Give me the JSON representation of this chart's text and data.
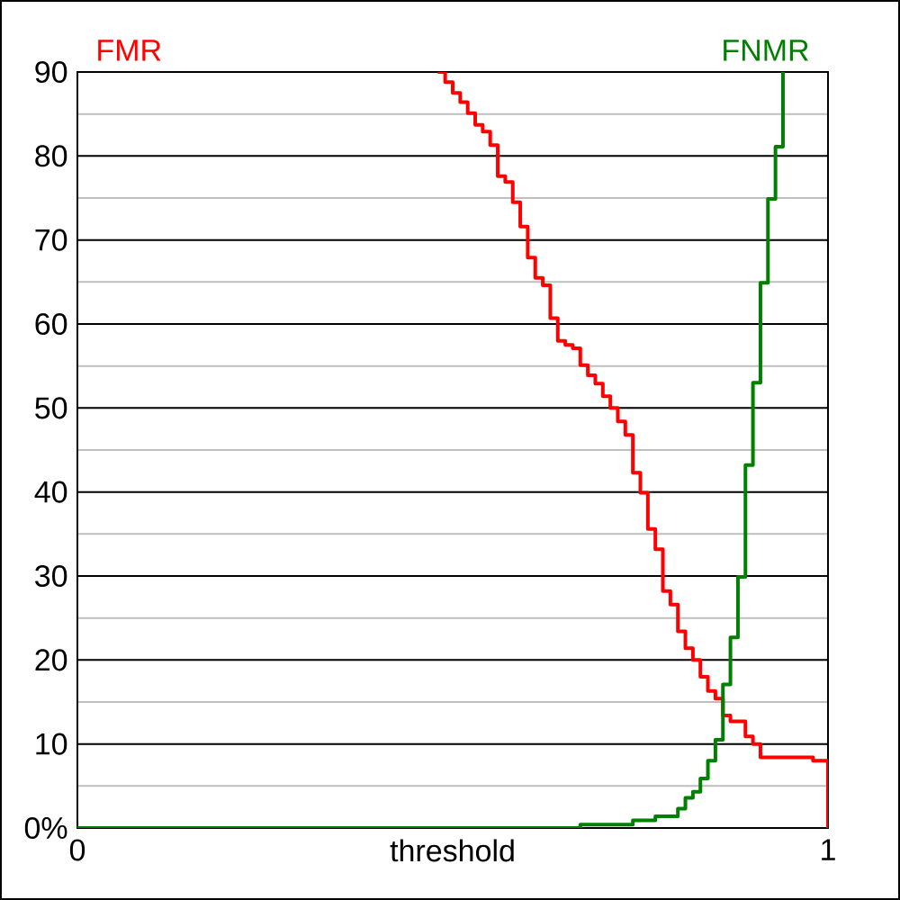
{
  "chart_data": {
    "type": "step",
    "xlabel": "threshold",
    "xlim": [
      0,
      1
    ],
    "xticks": [
      0,
      1
    ],
    "ylim": [
      0,
      90
    ],
    "yticks": [
      {
        "value": 0,
        "label": "0%"
      },
      {
        "value": 5,
        "label": null
      },
      10,
      {
        "value": 15,
        "label": null
      },
      20,
      {
        "value": 25,
        "label": null
      },
      30,
      {
        "value": 35,
        "label": null
      },
      40,
      {
        "value": 45,
        "label": null
      },
      50,
      {
        "value": 55,
        "label": null
      },
      60,
      {
        "value": 65,
        "label": null
      },
      70,
      {
        "value": 75,
        "label": null
      },
      80,
      {
        "value": 85,
        "label": null
      },
      90
    ],
    "grid": "y",
    "series": [
      {
        "name": "FMR",
        "color": "#ff0000",
        "x": [
          0.48,
          0.49,
          0.5,
          0.51,
          0.52,
          0.53,
          0.54,
          0.55,
          0.56,
          0.57,
          0.58,
          0.59,
          0.6,
          0.61,
          0.62,
          0.63,
          0.64,
          0.65,
          0.66,
          0.67,
          0.68,
          0.69,
          0.7,
          0.71,
          0.72,
          0.73,
          0.74,
          0.75,
          0.76,
          0.77,
          0.78,
          0.79,
          0.8,
          0.81,
          0.82,
          0.83,
          0.84,
          0.85,
          0.86,
          0.87,
          0.89,
          0.9,
          0.91,
          0.98,
          1.0
        ],
        "values": [
          90,
          88.8,
          87.5,
          86.4,
          85.1,
          83.7,
          82.9,
          81.3,
          77.6,
          76.9,
          74.5,
          71.6,
          67.9,
          65.5,
          64.6,
          60.7,
          58.0,
          57.5,
          57.1,
          55.1,
          53.9,
          52.9,
          51.4,
          50.0,
          48.4,
          46.8,
          42.3,
          39.9,
          35.6,
          33.2,
          28.2,
          26.6,
          23.4,
          21.4,
          20.0,
          18.0,
          16.3,
          15.4,
          13.4,
          12.7,
          10.9,
          10.0,
          8.4,
          8.0,
          0
        ]
      },
      {
        "name": "FNMR",
        "color": "#008000",
        "x": [
          0,
          0.67,
          0.74,
          0.77,
          0.8,
          0.81,
          0.82,
          0.83,
          0.84,
          0.85,
          0.86,
          0.87,
          0.88,
          0.89,
          0.9,
          0.91,
          0.92,
          0.93,
          0.94
        ],
        "values": [
          0,
          0.4,
          0.9,
          1.4,
          2.3,
          3.6,
          4.3,
          5.9,
          8.0,
          10.5,
          17.1,
          22.7,
          29.9,
          43.2,
          53.0,
          64.9,
          74.9,
          81.1,
          90
        ]
      }
    ]
  }
}
